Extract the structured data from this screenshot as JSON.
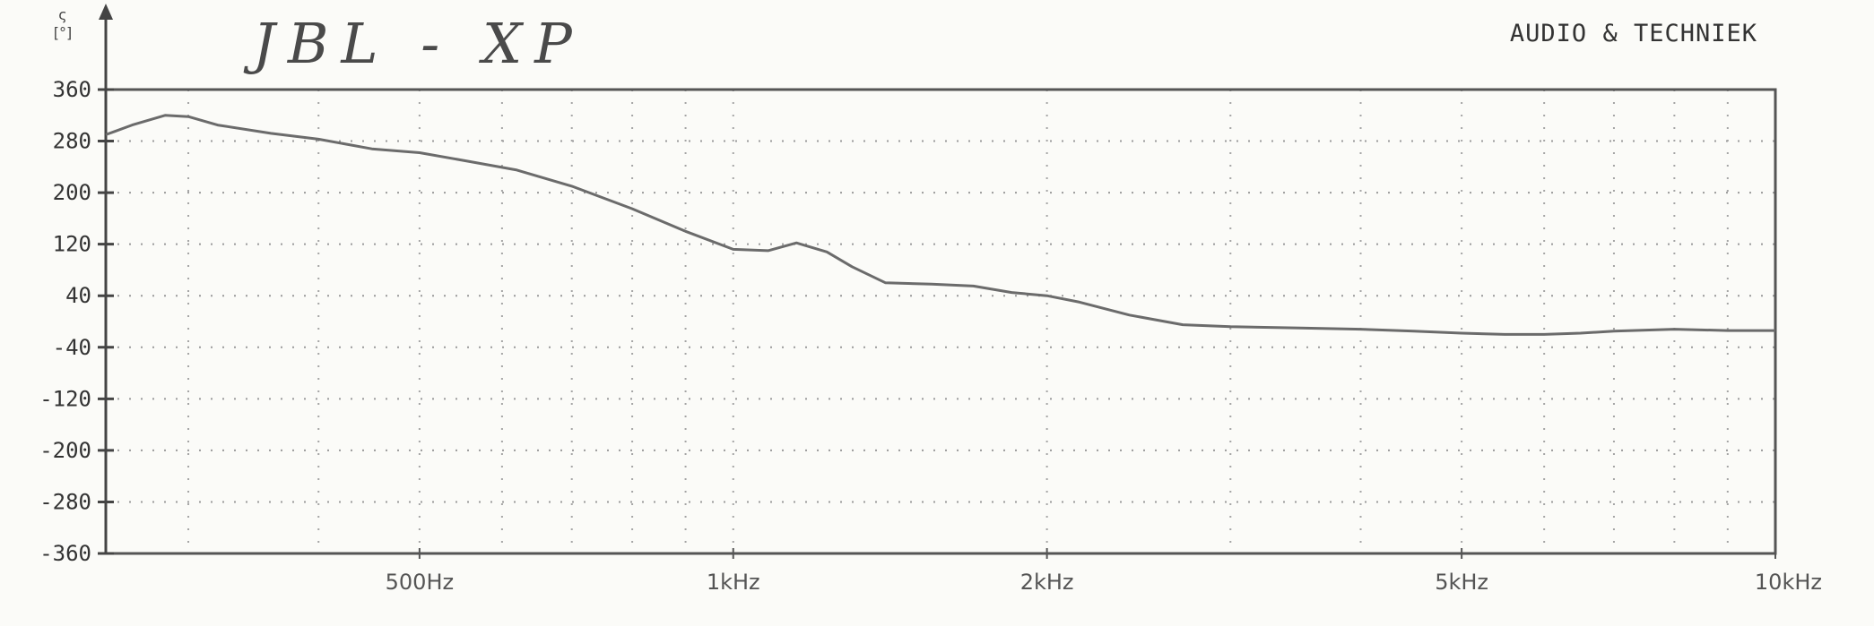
{
  "header": {
    "brand": "AUDIO & TECHNIEK",
    "handwritten_note": "JBL - XP",
    "unit_label_top": "ς",
    "unit_label_bottom": "[°]"
  },
  "chart_data": {
    "type": "line",
    "ylabel": "[°]",
    "ylim": [
      -360,
      360
    ],
    "y_ticks": [
      360,
      280,
      200,
      120,
      40,
      -40,
      -120,
      -200,
      -280,
      -360
    ],
    "x_scale": "log",
    "xlim": [
      250,
      10000
    ],
    "x_ticks": [
      {
        "value": 500,
        "label": "500Hz"
      },
      {
        "value": 1000,
        "label": "1kHz"
      },
      {
        "value": 2000,
        "label": "2kHz"
      },
      {
        "value": 5000,
        "label": "5kHz"
      },
      {
        "value": 10000,
        "label": "10kHz"
      }
    ],
    "grid": true,
    "series": [
      {
        "color": "#6b6b6b",
        "points": [
          [
            250,
            290
          ],
          [
            265,
            305
          ],
          [
            285,
            320
          ],
          [
            300,
            318
          ],
          [
            320,
            305
          ],
          [
            360,
            292
          ],
          [
            400,
            283
          ],
          [
            450,
            268
          ],
          [
            500,
            262
          ],
          [
            560,
            248
          ],
          [
            620,
            235
          ],
          [
            700,
            210
          ],
          [
            800,
            175
          ],
          [
            900,
            140
          ],
          [
            1000,
            112
          ],
          [
            1080,
            110
          ],
          [
            1150,
            122
          ],
          [
            1230,
            108
          ],
          [
            1300,
            85
          ],
          [
            1400,
            60
          ],
          [
            1550,
            58
          ],
          [
            1700,
            55
          ],
          [
            1850,
            45
          ],
          [
            2000,
            40
          ],
          [
            2150,
            30
          ],
          [
            2400,
            10
          ],
          [
            2700,
            -5
          ],
          [
            3000,
            -8
          ],
          [
            3500,
            -10
          ],
          [
            4000,
            -12
          ],
          [
            4500,
            -15
          ],
          [
            5000,
            -18
          ],
          [
            5500,
            -20
          ],
          [
            6000,
            -20
          ],
          [
            6500,
            -18
          ],
          [
            7000,
            -15
          ],
          [
            8000,
            -12
          ],
          [
            9000,
            -14
          ],
          [
            10000,
            -14
          ]
        ]
      }
    ]
  },
  "colors": {
    "background": "#fbfbf8",
    "frame": "#555555",
    "grid": "#9a9a9a",
    "trace": "#6b6b6b"
  }
}
